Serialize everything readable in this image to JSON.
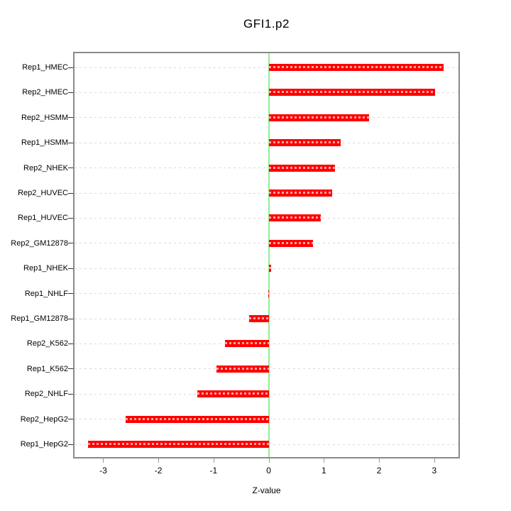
{
  "title": "GFI1.p2",
  "xlabel": "Z-value",
  "chart_data": {
    "type": "bar",
    "orientation": "horizontal",
    "title": "GFI1.p2",
    "xlabel": "Z-value",
    "ylabel": "",
    "categories": [
      "Rep1_HMEC",
      "Rep2_HMEC",
      "Rep2_HSMM",
      "Rep1_HSMM",
      "Rep2_NHEK",
      "Rep2_HUVEC",
      "Rep1_HUVEC",
      "Rep2_GM12878",
      "Rep1_NHEK",
      "Rep1_NHLF",
      "Rep1_GM12878",
      "Rep2_K562",
      "Rep1_K562",
      "Rep2_NHLF",
      "Rep2_HepG2",
      "Rep1_HepG2"
    ],
    "values": [
      3.17,
      3.02,
      1.82,
      1.3,
      1.2,
      1.15,
      0.95,
      0.8,
      0.05,
      -0.01,
      -0.36,
      -0.79,
      -0.95,
      -1.29,
      -2.6,
      -3.27
    ],
    "x_ticks": [
      -3,
      -2,
      -1,
      0,
      1,
      2,
      3
    ],
    "xlim": [
      -3.52,
      3.44
    ],
    "grid": "dotted horizontal line per category, full plot width",
    "legend": "none",
    "colors": {
      "bar": "#ff0000",
      "bar_dash": "#ffa3a3",
      "zero_line": "#90ee90",
      "gridline": "#d9d9d9",
      "frame": "#8a8a8a",
      "text": "#000000",
      "background": "#ffffff"
    }
  }
}
